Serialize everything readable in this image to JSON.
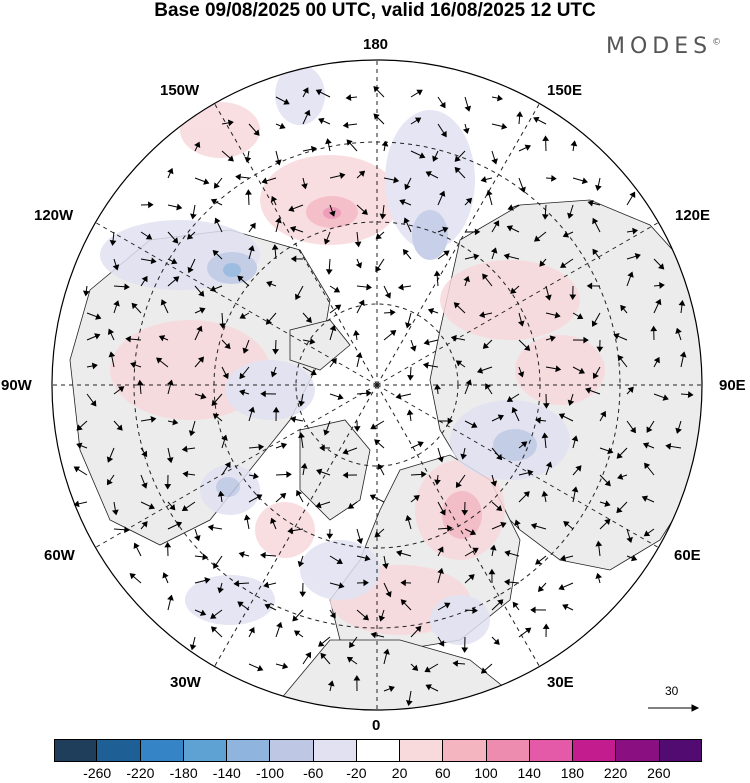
{
  "title": "Base 09/08/2025 00 UTC, valid 16/08/2025 12 UTC",
  "brand": {
    "name": "MODES",
    "mark": "©"
  },
  "longitude_labels": {
    "lon_180": "180",
    "lon_150e": "150E",
    "lon_120e": "120E",
    "lon_90e": "90E",
    "lon_60e": "60E",
    "lon_30e": "30E",
    "lon_0": "0",
    "lon_30w": "30W",
    "lon_60w": "60W",
    "lon_90w": "90W",
    "lon_120w": "120W",
    "lon_150w": "150W"
  },
  "reference_vector": {
    "value": "30"
  },
  "colorbar": {
    "colors": [
      "#1f3e5c",
      "#1e5f96",
      "#3585c6",
      "#5ea2d3",
      "#8fb5df",
      "#bec8e5",
      "#e1e1f1",
      "#ffffff",
      "#f8d9dc",
      "#f4b5c0",
      "#ee8cb0",
      "#e45aa8",
      "#c21c8f",
      "#8a0f80",
      "#520c71"
    ],
    "ticks": [
      "-260",
      "-220",
      "-180",
      "-140",
      "-100",
      "-60",
      "-20",
      "20",
      "60",
      "100",
      "140",
      "180",
      "220",
      "260"
    ]
  }
}
